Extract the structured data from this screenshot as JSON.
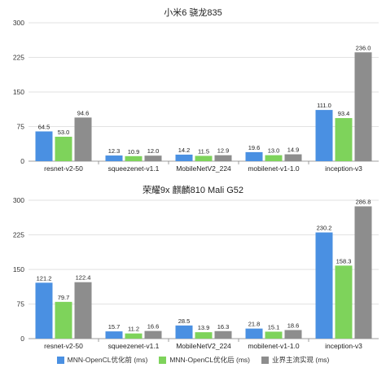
{
  "chart_data": [
    {
      "type": "bar",
      "title": "小米6 骁龙835",
      "categories": [
        "resnet-v2-50",
        "squeezenet-v1.1",
        "MobileNetV2_224",
        "mobilenet-v1-1.0",
        "inception-v3"
      ],
      "series": [
        {
          "name": "MNN-OpenCL优化前 (ms)",
          "values": [
            64.5,
            12.3,
            14.2,
            19.6,
            111.0
          ],
          "labels": [
            "64.5",
            "12.3",
            "14.2",
            "19.6",
            "111.0"
          ]
        },
        {
          "name": "MNN-OpenCL优化后 (ms)",
          "values": [
            53.0,
            10.9,
            11.5,
            13.0,
            93.4
          ],
          "labels": [
            "53.0",
            "10.9",
            "11.5",
            "13.0",
            "93.4"
          ]
        },
        {
          "name": "业界主流实现 (ms)",
          "values": [
            94.6,
            12.0,
            12.9,
            14.9,
            236.0
          ],
          "labels": [
            "94.6",
            "12.0",
            "12.9",
            "14.9",
            "236.0"
          ]
        }
      ],
      "ylim": [
        0,
        300
      ],
      "yticks": [
        0,
        75,
        150,
        225,
        300
      ],
      "grid": true,
      "legend": "bottom"
    },
    {
      "type": "bar",
      "title": "荣耀9x 麒麟810 Mali G52",
      "categories": [
        "resnet-v2-50",
        "squeezenet-v1.1",
        "MobileNetV2_224",
        "mobilenet-v1-1.0",
        "inception-v3"
      ],
      "series": [
        {
          "name": "MNN-OpenCL优化前 (ms)",
          "values": [
            121.2,
            15.7,
            28.5,
            21.8,
            230.2
          ],
          "labels": [
            "121.2",
            "15.7",
            "28.5",
            "21.8",
            "230.2"
          ]
        },
        {
          "name": "MNN-OpenCL优化后 (ms)",
          "values": [
            79.7,
            11.2,
            13.9,
            15.1,
            158.3
          ],
          "labels": [
            "79.7",
            "11.2",
            "13.9",
            "15.1",
            "158.3"
          ]
        },
        {
          "name": "业界主流实现 (ms)",
          "values": [
            122.4,
            16.6,
            16.3,
            18.6,
            286.8
          ],
          "labels": [
            "122.4",
            "16.6",
            "16.3",
            "18.6",
            "286.8"
          ]
        }
      ],
      "ylim": [
        0,
        300
      ],
      "yticks": [
        0,
        75,
        150,
        225,
        300
      ],
      "grid": true,
      "legend": "bottom"
    }
  ],
  "colors": {
    "series": [
      "#4a90e2",
      "#7ed35b",
      "#8d8d8d"
    ],
    "grid": "#d9d9d9",
    "axis": "#888888"
  },
  "legend": {
    "items": [
      {
        "label": "MNN-OpenCL优化前 (ms)",
        "color": "#4a90e2"
      },
      {
        "label": "MNN-OpenCL优化后 (ms)",
        "color": "#7ed35b"
      },
      {
        "label": "业界主流实现 (ms)",
        "color": "#8d8d8d"
      }
    ]
  }
}
